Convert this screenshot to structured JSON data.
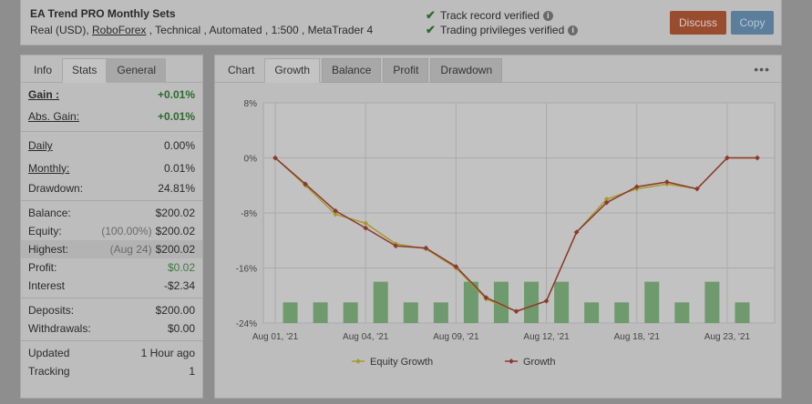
{
  "header": {
    "title": "EA Trend PRO Monthly Sets",
    "sub_prefix": "Real (USD), ",
    "broker": "RoboForex",
    "sub_suffix": " , Technical , Automated , 1:500 , MetaTrader 4",
    "verify1": "Track record verified",
    "verify2": "Trading privileges verified",
    "discuss": "Discuss",
    "copy": "Copy"
  },
  "left": {
    "tabs": [
      "Info",
      "Stats",
      "General"
    ],
    "gain": {
      "label": "Gain :",
      "value": "+0.01%"
    },
    "abs_gain": {
      "label": "Abs. Gain:",
      "value": "+0.01%"
    },
    "daily": {
      "label": "Daily",
      "value": "0.00%"
    },
    "monthly": {
      "label": "Monthly:",
      "value": "0.01%"
    },
    "drawdown": {
      "label": "Drawdown:",
      "value": "24.81%"
    },
    "balance": {
      "label": "Balance:",
      "value": "$200.02"
    },
    "equity": {
      "label": "Equity:",
      "sub": "(100.00%)",
      "value": "$200.02"
    },
    "highest": {
      "label": "Highest:",
      "sub": "(Aug 24)",
      "value": "$200.02"
    },
    "profit": {
      "label": "Profit:",
      "value": "$0.02"
    },
    "interest": {
      "label": "Interest",
      "value": "-$2.34"
    },
    "deposits": {
      "label": "Deposits:",
      "value": "$200.00"
    },
    "withdrawals": {
      "label": "Withdrawals:",
      "value": "$0.00"
    },
    "updated": {
      "label": "Updated",
      "value": "1 Hour ago"
    },
    "tracking": {
      "label": "Tracking",
      "value": "1"
    }
  },
  "right": {
    "tabs": [
      "Chart",
      "Growth",
      "Balance",
      "Profit",
      "Drawdown"
    ],
    "more": "•••"
  },
  "chart_data": {
    "type": "line",
    "ylim": [
      -24,
      8
    ],
    "yticks": [
      "8%",
      "0%",
      "-8%",
      "-16%",
      "-24%"
    ],
    "ytick_values": [
      8,
      0,
      -8,
      -16,
      -24
    ],
    "xtick_labels": [
      "Aug 01, '21",
      "Aug 04, '21",
      "Aug 09, '21",
      "Aug 12, '21",
      "Aug 18, '21",
      "Aug 23, '21"
    ],
    "xtick_index": [
      0,
      3,
      6,
      9,
      12,
      15
    ],
    "n_points": 17,
    "series": [
      {
        "name": "Equity Growth",
        "color": "#a89a2e",
        "values": [
          0,
          -4,
          -8.2,
          -9.5,
          -12.5,
          -13.2,
          -16,
          -20.5,
          -22.3,
          -20.8,
          -10.8,
          -6,
          -4.5,
          -3.8,
          -4.5,
          0,
          0
        ]
      },
      {
        "name": "Growth",
        "color": "#8a3a2e",
        "values": [
          0,
          -3.8,
          -7.7,
          -10.2,
          -12.8,
          -13.1,
          -15.8,
          -20.3,
          -22.3,
          -20.8,
          -10.8,
          -6.5,
          -4.2,
          -3.5,
          -4.5,
          0,
          0
        ]
      }
    ],
    "bars": {
      "color": "#6e9a6e",
      "values": [
        -21,
        -21,
        -21,
        -18,
        -21,
        -21,
        -18,
        -18,
        -18,
        -18,
        -21,
        -21,
        -18,
        -21,
        -18,
        -21
      ]
    }
  }
}
